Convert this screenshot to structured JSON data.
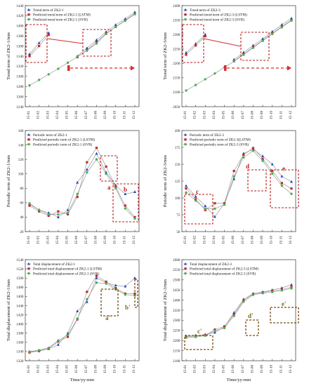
{
  "chart_data": [
    {
      "id": "trend-zk21",
      "type": "line",
      "ylabel": "Trend term of ZK2-1/mm",
      "xlabel": "",
      "ylim": [
        1240,
        1440
      ],
      "yticks": [
        1240,
        1260,
        1280,
        1300,
        1320,
        1340,
        1360,
        1380,
        1400,
        1420,
        1440
      ],
      "categories": [
        "15-01",
        "15-02",
        "15-03",
        "15-04",
        "15-05",
        "15-06",
        "15-07",
        "15-08",
        "15-09",
        "15-10",
        "15-11",
        "15-12"
      ],
      "legend_position": "top-left",
      "series": [
        {
          "name": "Trend term of ZK2-1",
          "marker": "triangle",
          "color": "#1f3fbf",
          "values": [
            1344,
            1366,
            1386,
            null,
            null,
            1340,
            1356,
            1372,
            1388,
            1402,
            1414,
            1427
          ]
        },
        {
          "name": "Predicted trend term of ZK2-1 (LSTM)",
          "marker": "square",
          "color": "#c62828",
          "values": [
            1340,
            1360,
            1382,
            null,
            null,
            1338,
            1352,
            1368,
            1385,
            1398,
            1411,
            1424
          ]
        },
        {
          "name": "Predicted trend term of ZK2-1 (SVR)",
          "marker": "circle",
          "color": "#4caf50",
          "values": [
            1282,
            1293,
            1304,
            1315,
            1327,
            1339,
            1351,
            1365,
            1384,
            1398,
            1410,
            1423
          ]
        }
      ]
    },
    {
      "id": "trend-zk23",
      "type": "line",
      "ylabel": "Trend term of ZK2-3/mm",
      "xlabel": "",
      "ylim": [
        2050,
        2400
      ],
      "yticks": [
        2050,
        2100,
        2150,
        2200,
        2250,
        2300,
        2350,
        2400
      ],
      "categories": [
        "15-01",
        "15-02",
        "15-03",
        "15-04",
        "15-05",
        "15-06",
        "15-07",
        "15-08",
        "15-09",
        "15-10",
        "15-11",
        "15-12"
      ],
      "legend_position": "top-left",
      "series": [
        {
          "name": "Trend term of ZK2-3",
          "marker": "triangle",
          "color": "#1f3fbf",
          "values": [
            2237,
            2268,
            2300,
            null,
            null,
            2213,
            2238,
            2262,
            2285,
            2310,
            2334,
            2356
          ]
        },
        {
          "name": "Predicted trend term of ZK2-3 (LSTM)",
          "marker": "square",
          "color": "#c62828",
          "values": [
            2230,
            2262,
            2294,
            null,
            null,
            2208,
            2232,
            2256,
            2280,
            2305,
            2328,
            2350
          ]
        },
        {
          "name": "Predicted trend term of ZK2-3 (SVR)",
          "marker": "circle",
          "color": "#4caf50",
          "values": [
            2106,
            2125,
            2145,
            2165,
            2186,
            2207,
            2230,
            2254,
            2278,
            2302,
            2325,
            2348
          ]
        }
      ]
    },
    {
      "id": "periodic-zk21",
      "type": "line",
      "ylabel": "Periodic term of ZK2-1/mm",
      "xlabel": "",
      "ylim": [
        20,
        160
      ],
      "yticks": [
        20,
        40,
        60,
        80,
        100,
        120,
        140,
        160
      ],
      "categories": [
        "15-01",
        "15-02",
        "15-03",
        "15-04",
        "15-05",
        "15-06",
        "15-07",
        "15-08",
        "15-09",
        "15-10",
        "15-11",
        "15-12"
      ],
      "legend_position": "top-left",
      "series": [
        {
          "name": "Periodic term of ZK2-1",
          "marker": "triangle",
          "color": "#1f3fbf",
          "values": [
            58,
            50,
            46,
            40,
            50,
            88,
            106,
            128,
            102,
            84,
            72,
            75
          ]
        },
        {
          "name": "Predicted periodic term of ZK2-1 (LSTM)",
          "marker": "square",
          "color": "#c62828",
          "values": [
            56,
            48,
            42,
            48,
            44,
            68,
            116,
            136,
            110,
            82,
            56,
            40
          ]
        },
        {
          "name": "Predicted periodic term of ZK2-1 (SVR)",
          "marker": "circle",
          "color": "#4caf50",
          "values": [
            59,
            50,
            44,
            44,
            46,
            72,
            102,
            120,
            100,
            80,
            52,
            38
          ]
        }
      ],
      "annotations": [
        {
          "label": "a"
        },
        {
          "label": "b"
        }
      ]
    },
    {
      "id": "periodic-zk23",
      "type": "line",
      "ylabel": "Periodic term of ZK2-3/mm",
      "xlabel": "",
      "ylim": [
        50,
        200
      ],
      "yticks": [
        50,
        75,
        100,
        125,
        150,
        175,
        200
      ],
      "categories": [
        "15-01",
        "15-02",
        "15-03",
        "15-04",
        "15-05",
        "15-06",
        "15-07",
        "15-08",
        "15-09",
        "15-10",
        "15-11",
        "15-12"
      ],
      "legend_position": "top-left",
      "series": [
        {
          "name": "Periodic term of ZK2-3",
          "marker": "triangle",
          "color": "#1f3fbf",
          "values": [
            118,
            102,
            88,
            72,
            92,
            128,
            166,
            172,
            162,
            150,
            132,
            124
          ]
        },
        {
          "name": "Predicted periodic term of ZK2-3(LSTM)",
          "marker": "square",
          "color": "#c62828",
          "values": [
            114,
            98,
            82,
            92,
            92,
            140,
            164,
            174,
            158,
            140,
            122,
            114
          ]
        },
        {
          "name": "Predicted periodic term of ZK2-3 (SVR)",
          "marker": "circle",
          "color": "#4caf50",
          "values": [
            108,
            96,
            84,
            84,
            90,
            132,
            160,
            170,
            155,
            136,
            118,
            106
          ]
        }
      ],
      "annotations": [
        {
          "label": "c"
        },
        {
          "label": "d"
        },
        {
          "label": "e"
        }
      ]
    },
    {
      "id": "total-zk21",
      "type": "line",
      "ylabel": "Total displacement of ZK2-1/mm",
      "xlabel": "Time/yy-mm",
      "ylim": [
        1320,
        1540
      ],
      "yticks": [
        1320,
        1340,
        1360,
        1380,
        1400,
        1420,
        1440,
        1460,
        1480,
        1500,
        1520,
        1540
      ],
      "categories": [
        "15-01",
        "15-02",
        "15-03",
        "15-04",
        "15-05",
        "15-06",
        "15-07",
        "15-08",
        "15-09",
        "15-10",
        "15-11",
        "15-12"
      ],
      "legend_position": "top-left",
      "series": [
        {
          "name": "Total displacement of ZK2-1",
          "marker": "triangle",
          "color": "#1f3fbf",
          "values": [
            1339,
            1342,
            1346,
            1355,
            1380,
            1428,
            1448,
            1500,
            1490,
            1484,
            1482,
            1500
          ]
        },
        {
          "name": "Predicted total displacement of ZK2-1 (LSTM)",
          "marker": "square",
          "color": "#c62828",
          "values": [
            1338,
            1341,
            1346,
            1362,
            1372,
            1410,
            1470,
            1505,
            1492,
            1478,
            1466,
            1466
          ]
        },
        {
          "name": "Predicted total displacement of ZK2-1 (SVR)",
          "marker": "circle",
          "color": "#4caf50",
          "values": [
            1340,
            1343,
            1348,
            1364,
            1376,
            1412,
            1454,
            1490,
            1488,
            1475,
            1464,
            1462
          ]
        }
      ],
      "annotations": [
        {
          "label": "a'"
        },
        {
          "label": "b'"
        }
      ]
    },
    {
      "id": "total-zk23",
      "type": "line",
      "ylabel": "Total displacement of ZK2-3/mm",
      "xlabel": "Time/yy-mm",
      "ylim": [
        2100,
        2600
      ],
      "yticks": [
        2100,
        2150,
        2200,
        2250,
        2300,
        2350,
        2400,
        2450,
        2500,
        2550,
        2600
      ],
      "categories": [
        "15-01",
        "15-02",
        "15-03",
        "15-04",
        "15-05",
        "15-06",
        "15-07",
        "15-08",
        "15-09",
        "15-10",
        "15-11",
        "15-12"
      ],
      "legend_position": "top-left",
      "series": [
        {
          "name": "Total displacement of ZK2-3",
          "marker": "triangle",
          "color": "#1f3fbf",
          "values": [
            2222,
            2225,
            2230,
            2240,
            2268,
            2338,
            2404,
            2432,
            2440,
            2450,
            2460,
            2476
          ]
        },
        {
          "name": "Predicted total displacement of ZK2-3 (LSTM)",
          "marker": "square",
          "color": "#c62828",
          "values": [
            2218,
            2222,
            2226,
            2254,
            2270,
            2330,
            2398,
            2430,
            2438,
            2446,
            2452,
            2464
          ]
        },
        {
          "name": "Predicted total displacement of ZK2-3 (SVR)",
          "marker": "circle",
          "color": "#4caf50",
          "values": [
            2214,
            2218,
            2224,
            2248,
            2262,
            2322,
            2392,
            2426,
            2434,
            2440,
            2448,
            2458
          ]
        }
      ],
      "annotations": [
        {
          "label": "c'"
        },
        {
          "label": "d'"
        },
        {
          "label": "e'"
        }
      ]
    }
  ]
}
